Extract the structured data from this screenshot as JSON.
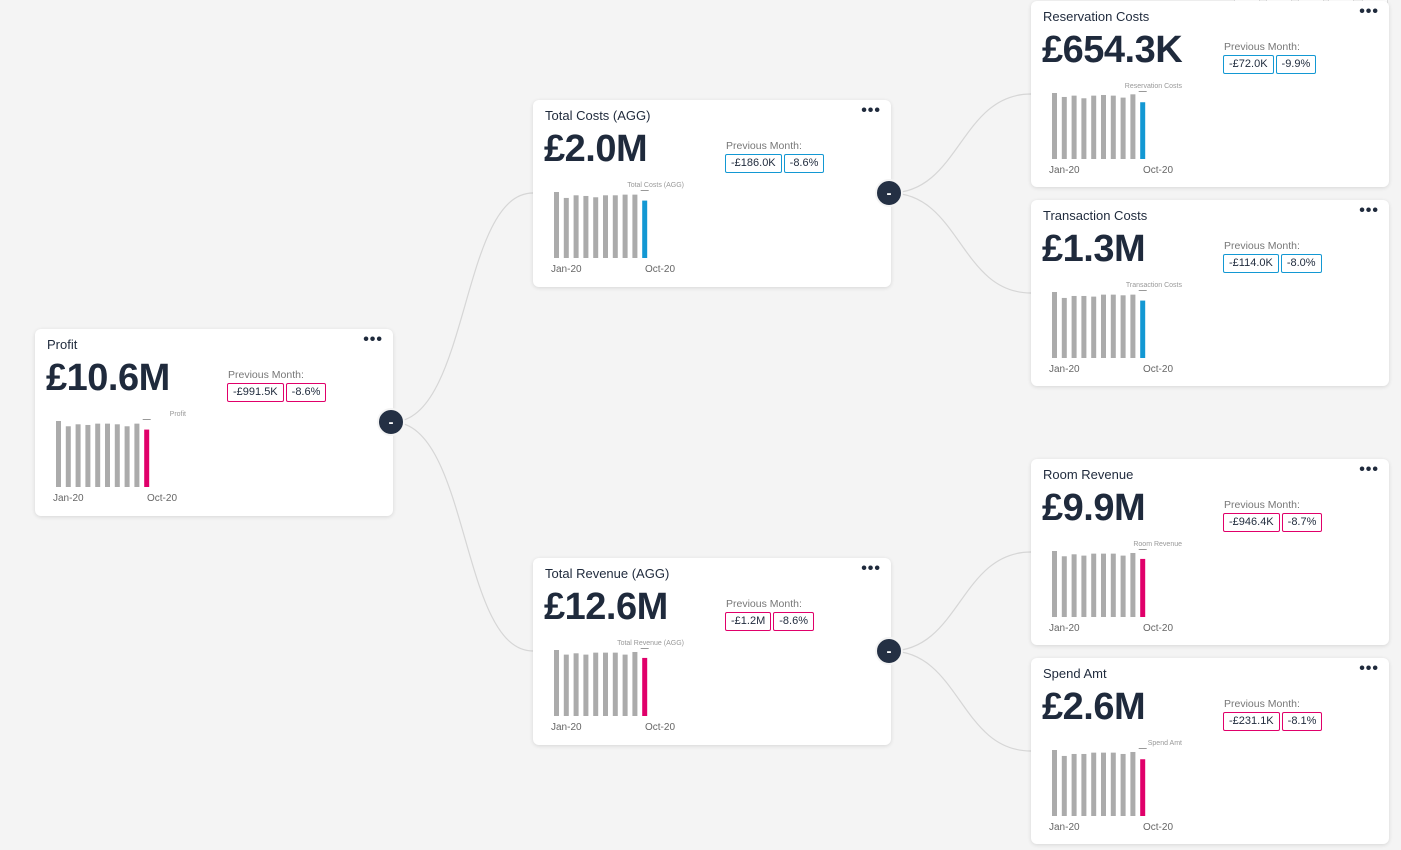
{
  "colors": {
    "pink": "#e0006a",
    "blue": "#1398d3",
    "bar_gray": "#ababab",
    "node_dark": "#243044"
  },
  "cards": [
    {
      "id": "profit",
      "title": "Profit",
      "value": "£10.6M",
      "prev_label": "Previous Month:",
      "delta_abs": "-£991.5K",
      "delta_pct": "-8.6%",
      "accent": "pink",
      "chart_caption": "Profit",
      "x_start": "Jan-20",
      "x_end": "Oct-20",
      "menu": "•••",
      "chart_data": {
        "type": "bar",
        "categories": [
          "Jan-20",
          "Feb-20",
          "Mar-20",
          "Apr-20",
          "May-20",
          "Jun-20",
          "Jul-20",
          "Aug-20",
          "Sep-20",
          "Oct-20"
        ],
        "values": [
          100,
          92,
          95,
          94,
          96,
          96,
          95,
          92,
          96,
          87
        ]
      }
    },
    {
      "id": "total_costs",
      "title": "Total Costs (AGG)",
      "value": "£2.0M",
      "prev_label": "Previous Month:",
      "delta_abs": "-£186.0K",
      "delta_pct": "-8.6%",
      "accent": "blue",
      "chart_caption": "Total Costs (AGG)",
      "x_start": "Jan-20",
      "x_end": "Oct-20",
      "menu": "•••",
      "chart_data": {
        "type": "bar",
        "categories": [
          "Jan-20",
          "Feb-20",
          "Mar-20",
          "Apr-20",
          "May-20",
          "Jun-20",
          "Jul-20",
          "Aug-20",
          "Sep-20",
          "Oct-20"
        ],
        "values": [
          100,
          91,
          95,
          94,
          92,
          95,
          95,
          96,
          96,
          87
        ]
      }
    },
    {
      "id": "total_revenue",
      "title": "Total Revenue (AGG)",
      "value": "£12.6M",
      "prev_label": "Previous Month:",
      "delta_abs": "-£1.2M",
      "delta_pct": "-8.6%",
      "accent": "pink",
      "chart_caption": "Total Revenue (AGG)",
      "x_start": "Jan-20",
      "x_end": "Oct-20",
      "menu": "•••",
      "chart_data": {
        "type": "bar",
        "categories": [
          "Jan-20",
          "Feb-20",
          "Mar-20",
          "Apr-20",
          "May-20",
          "Jun-20",
          "Jul-20",
          "Aug-20",
          "Sep-20",
          "Oct-20"
        ],
        "values": [
          100,
          93,
          95,
          93,
          96,
          96,
          96,
          93,
          97,
          88
        ]
      }
    },
    {
      "id": "reservation_costs",
      "title": "Reservation Costs",
      "value": "£654.3K",
      "prev_label": "Previous Month:",
      "delta_abs": "-£72.0K",
      "delta_pct": "-9.9%",
      "accent": "blue",
      "chart_caption": "Reservation Costs",
      "x_start": "Jan-20",
      "x_end": "Oct-20",
      "menu": "•••",
      "chart_data": {
        "type": "bar",
        "categories": [
          "Jan-20",
          "Feb-20",
          "Mar-20",
          "Apr-20",
          "May-20",
          "Jun-20",
          "Jul-20",
          "Aug-20",
          "Sep-20",
          "Oct-20"
        ],
        "values": [
          100,
          94,
          96,
          92,
          96,
          97,
          96,
          93,
          98,
          86
        ]
      }
    },
    {
      "id": "transaction_costs",
      "title": "Transaction Costs",
      "value": "£1.3M",
      "prev_label": "Previous Month:",
      "delta_abs": "-£114.0K",
      "delta_pct": "-8.0%",
      "accent": "blue",
      "chart_caption": "Transaction Costs",
      "x_start": "Jan-20",
      "x_end": "Oct-20",
      "menu": "•••",
      "chart_data": {
        "type": "bar",
        "categories": [
          "Jan-20",
          "Feb-20",
          "Mar-20",
          "Apr-20",
          "May-20",
          "Jun-20",
          "Jul-20",
          "Aug-20",
          "Sep-20",
          "Oct-20"
        ],
        "values": [
          100,
          91,
          94,
          94,
          93,
          96,
          96,
          95,
          96,
          87
        ]
      }
    },
    {
      "id": "room_revenue",
      "title": "Room Revenue",
      "value": "£9.9M",
      "prev_label": "Previous Month:",
      "delta_abs": "-£946.4K",
      "delta_pct": "-8.7%",
      "accent": "pink",
      "chart_caption": "Room Revenue",
      "x_start": "Jan-20",
      "x_end": "Oct-20",
      "menu": "•••",
      "chart_data": {
        "type": "bar",
        "categories": [
          "Jan-20",
          "Feb-20",
          "Mar-20",
          "Apr-20",
          "May-20",
          "Jun-20",
          "Jul-20",
          "Aug-20",
          "Sep-20",
          "Oct-20"
        ],
        "values": [
          100,
          92,
          95,
          93,
          96,
          96,
          96,
          93,
          97,
          88
        ]
      }
    },
    {
      "id": "spend_amt",
      "title": "Spend Amt",
      "value": "£2.6M",
      "prev_label": "Previous Month:",
      "delta_abs": "-£231.1K",
      "delta_pct": "-8.1%",
      "accent": "pink",
      "chart_caption": "Spend Amt",
      "x_start": "Jan-20",
      "x_end": "Oct-20",
      "menu": "•••",
      "chart_data": {
        "type": "bar",
        "categories": [
          "Jan-20",
          "Feb-20",
          "Mar-20",
          "Apr-20",
          "May-20",
          "Jun-20",
          "Jul-20",
          "Aug-20",
          "Sep-20",
          "Oct-20"
        ],
        "values": [
          100,
          91,
          94,
          94,
          96,
          96,
          96,
          94,
          97,
          86
        ]
      }
    }
  ],
  "collapse_buttons": [
    {
      "id": "collapse-profit",
      "label": "-"
    },
    {
      "id": "collapse-total-costs",
      "label": "-"
    },
    {
      "id": "collapse-total-revenue",
      "label": "-"
    }
  ]
}
